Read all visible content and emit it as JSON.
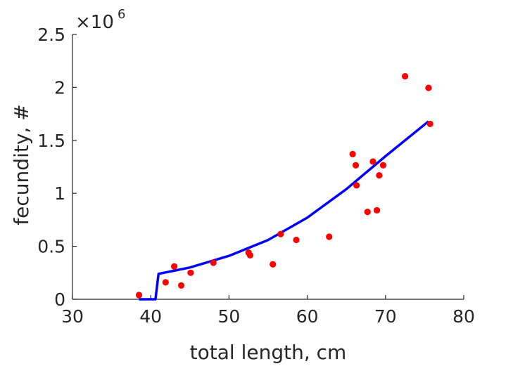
{
  "chart_data": {
    "type": "scatter",
    "xlabel": "total length, cm",
    "ylabel": "fecundity, #",
    "xlim": [
      30,
      80
    ],
    "ylim": [
      0,
      2500000
    ],
    "x_ticks": [
      "30",
      "40",
      "50",
      "60",
      "70",
      "80"
    ],
    "y_ticks": [
      "0",
      "0.5",
      "1",
      "1.5",
      "2",
      "2.5"
    ],
    "y_exponent": {
      "base": "10",
      "power": "6"
    },
    "grid": false,
    "legend": "none",
    "series": [
      {
        "kind": "scatter",
        "color": "#ff0000",
        "x": [
          38.5,
          41.9,
          43.0,
          43.9,
          45.1,
          48.0,
          52.5,
          52.7,
          55.6,
          56.6,
          58.6,
          62.8,
          65.8,
          66.2,
          66.3,
          67.7,
          68.4,
          68.9,
          69.2,
          69.7,
          72.5,
          75.5,
          75.7
        ],
        "y": [
          40000,
          160000,
          310000,
          130000,
          250000,
          345000,
          440000,
          415000,
          330000,
          615000,
          560000,
          590000,
          1370000,
          1265000,
          1075000,
          825000,
          1300000,
          840000,
          1170000,
          1265000,
          2105000,
          1995000,
          1655000
        ]
      },
      {
        "kind": "line",
        "color": "#0000ff",
        "x": [
          38.5,
          39.0,
          40.5,
          40.5,
          40.6,
          41.0,
          45,
          50,
          55,
          60,
          65,
          70,
          75.5
        ],
        "y": [
          0,
          0,
          0,
          0,
          0,
          240000,
          300000,
          410000,
          560000,
          770000,
          1040000,
          1350000,
          1680000
        ]
      }
    ]
  }
}
